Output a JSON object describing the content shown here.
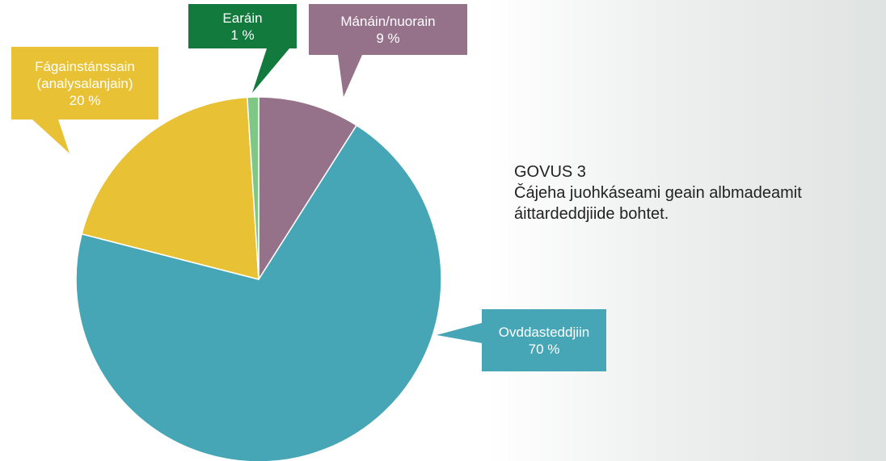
{
  "chart_data": {
    "type": "pie",
    "title": "GOVUS 3",
    "subtitle": "Čájeha juohkáseami geain albmadeamit áittardeddjiide bohtet.",
    "categories": [
      "Mánáin/nuorain",
      "Ovddasteddjiin",
      "Fágainstánssain (analysalanjain)",
      "Earáin"
    ],
    "values": [
      9,
      70,
      20,
      1
    ],
    "value_labels": [
      "9 %",
      "70 %",
      "20 %",
      "1 %"
    ],
    "colors": [
      "#95728a",
      "#46a6b6",
      "#e8c135",
      "#7ec784"
    ],
    "label_colors": [
      "#95728a",
      "#46a6b6",
      "#e8c135",
      "#127a3c"
    ]
  }
}
